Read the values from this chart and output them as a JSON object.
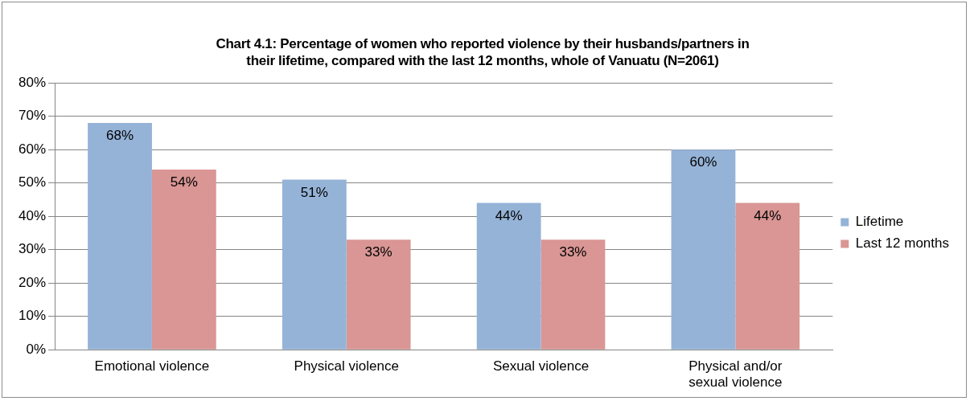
{
  "chart_data": {
    "type": "bar",
    "title": "Chart 4.1: Percentage of women who reported violence by their husbands/partners in their lifetime, compared with the last 12 months, whole of Vanuatu (N=2061)",
    "categories": [
      "Emotional violence",
      "Physical violence",
      "Sexual violence",
      "Physical and/or sexual violence"
    ],
    "series": [
      {
        "name": "Lifetime",
        "color": "#95b3d7",
        "values": [
          68,
          51,
          44,
          60
        ],
        "value_labels": [
          "68%",
          "51%",
          "44%",
          "60%"
        ]
      },
      {
        "name": "Last 12 months",
        "color": "#d99694",
        "values": [
          54,
          33,
          33,
          44
        ],
        "value_labels": [
          "54%",
          "33%",
          "33%",
          "44%"
        ]
      }
    ],
    "ylim": [
      0,
      80
    ],
    "yticks": [
      {
        "value": 0,
        "label": "0%"
      },
      {
        "value": 10,
        "label": "10%"
      },
      {
        "value": 20,
        "label": "20%"
      },
      {
        "value": 30,
        "label": "30%"
      },
      {
        "value": 40,
        "label": "40%"
      },
      {
        "value": 50,
        "label": "50%"
      },
      {
        "value": 60,
        "label": "60%"
      },
      {
        "value": 70,
        "label": "70%"
      },
      {
        "value": 80,
        "label": "80%"
      }
    ],
    "grid": "y",
    "legend": "right"
  }
}
